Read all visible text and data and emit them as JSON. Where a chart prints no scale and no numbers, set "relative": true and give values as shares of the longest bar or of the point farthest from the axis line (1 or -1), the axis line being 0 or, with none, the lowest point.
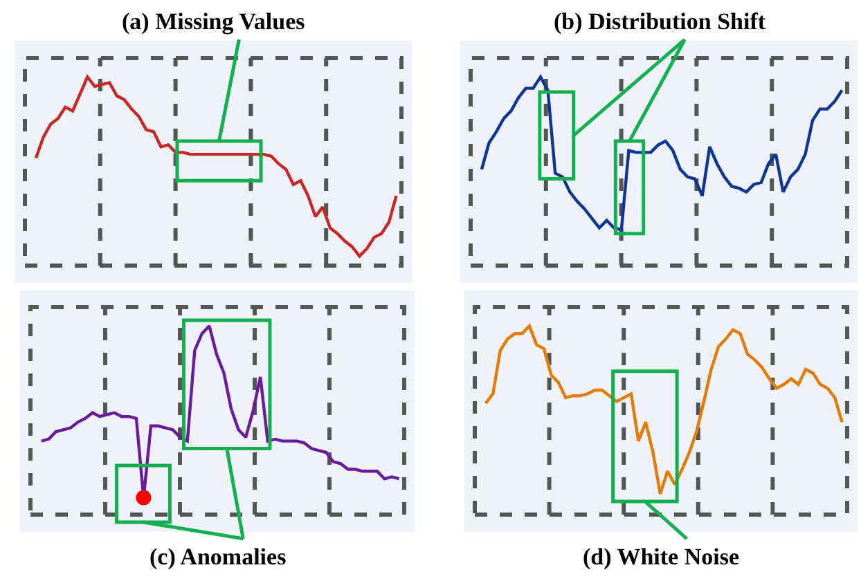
{
  "chart_data": [
    {
      "type": "line",
      "title": "(a) Missing Values",
      "relative": true,
      "marker": "none",
      "categories": [
        null,
        null,
        null,
        null,
        null,
        null,
        null,
        null,
        null,
        null,
        null,
        null,
        null,
        null,
        null,
        null,
        null,
        null,
        null,
        null,
        null,
        null,
        null,
        null,
        null,
        null,
        null,
        null,
        null,
        null,
        null,
        null,
        null,
        null,
        null,
        null,
        null,
        null,
        null,
        null,
        null,
        null,
        null,
        null,
        null,
        null,
        null,
        null,
        null,
        null
      ],
      "series": [
        {
          "color": "#c62828",
          "values": [
            0.57,
            0.68,
            0.75,
            0.78,
            0.84,
            0.82,
            0.91,
            1.0,
            0.95,
            0.96,
            0.97,
            0.9,
            0.88,
            0.83,
            0.79,
            0.72,
            0.71,
            0.63,
            0.64,
            0.6,
            0.6,
            0.59,
            0.59,
            0.59,
            0.59,
            0.59,
            0.59,
            0.59,
            0.59,
            0.59,
            0.59,
            0.59,
            0.58,
            0.54,
            0.51,
            0.43,
            0.45,
            0.37,
            0.26,
            0.31,
            0.2,
            0.17,
            0.13,
            0.1,
            0.05,
            0.09,
            0.15,
            0.17,
            0.23,
            0.37
          ]
        }
      ]
    },
    {
      "type": "line",
      "title": "(b) Distribution Shift",
      "relative": true,
      "marker": "none",
      "categories": [
        null,
        null,
        null,
        null,
        null,
        null,
        null,
        null,
        null,
        null,
        null,
        null,
        null,
        null,
        null,
        null,
        null,
        null,
        null,
        null,
        null,
        null,
        null,
        null,
        null,
        null,
        null,
        null,
        null,
        null,
        null,
        null,
        null,
        null,
        null,
        null,
        null,
        null,
        null,
        null,
        null,
        null,
        null,
        null,
        null,
        null,
        null,
        null,
        null,
        null
      ],
      "series": [
        {
          "color": "#0d3594",
          "values": [
            0.51,
            0.65,
            0.71,
            0.78,
            0.82,
            0.89,
            0.94,
            0.94,
            1,
            0.93,
            0.49,
            0.47,
            0.39,
            0.34,
            0.3,
            0.25,
            0.2,
            0.24,
            0.2,
            0.19,
            0.61,
            0.6,
            0.6,
            0.6,
            0.64,
            0.66,
            0.61,
            0.51,
            0.47,
            0.46,
            0.37,
            0.63,
            0.54,
            0.47,
            0.42,
            0.41,
            0.39,
            0.43,
            0.44,
            0.54,
            0.59,
            0.39,
            0.47,
            0.51,
            0.59,
            0.77,
            0.83,
            0.83,
            0.87,
            0.93
          ]
        }
      ]
    },
    {
      "type": "line",
      "title": "(c) Anomalies",
      "relative": true,
      "marker": "none",
      "categories": [
        null,
        null,
        null,
        null,
        null,
        null,
        null,
        null,
        null,
        null,
        null,
        null,
        null,
        null,
        null,
        null,
        null,
        null,
        null,
        null,
        null,
        null,
        null,
        null,
        null,
        null,
        null,
        null,
        null,
        null,
        null,
        null,
        null,
        null,
        null,
        null,
        null,
        null,
        null,
        null,
        null,
        null,
        null,
        null,
        null,
        null,
        null,
        null,
        null,
        null
      ],
      "series": [
        {
          "color": "#6a1b9a",
          "values": [
            0.39,
            0.4,
            0.44,
            0.45,
            0.46,
            0.49,
            0.51,
            0.54,
            0.52,
            0.53,
            0.54,
            0.52,
            0.52,
            0.51,
            0.09,
            0.47,
            0.47,
            0.46,
            0.45,
            0.41,
            0.39,
            0.87,
            0.96,
            1,
            0.85,
            0.75,
            0.56,
            0.45,
            0.41,
            0.55,
            0.73,
            0.39,
            0.4,
            0.39,
            0.39,
            0.39,
            0.38,
            0.35,
            0.34,
            0.33,
            0.28,
            0.27,
            0.24,
            0.24,
            0.23,
            0.23,
            0.23,
            0.19,
            0.2,
            0.19
          ]
        }
      ]
    },
    {
      "type": "line",
      "title": "(d) White Noise",
      "relative": true,
      "marker": "none",
      "categories": [
        null,
        null,
        null,
        null,
        null,
        null,
        null,
        null,
        null,
        null,
        null,
        null,
        null,
        null,
        null,
        null,
        null,
        null,
        null,
        null,
        null,
        null,
        null,
        null,
        null,
        null,
        null,
        null,
        null,
        null,
        null,
        null,
        null,
        null,
        null,
        null,
        null,
        null,
        null,
        null,
        null,
        null,
        null,
        null,
        null,
        null,
        null,
        null,
        null,
        null
      ],
      "series": [
        {
          "color": "#e37b06",
          "values": [
            0.59,
            0.64,
            0.87,
            0.93,
            0.96,
            0.96,
            1,
            0.9,
            0.88,
            0.74,
            0.7,
            0.62,
            0.63,
            0.63,
            0.64,
            0.66,
            0.66,
            0.63,
            0.6,
            0.62,
            0.64,
            0.39,
            0.49,
            0.33,
            0.11,
            0.23,
            0.16,
            0.24,
            0.33,
            0.44,
            0.6,
            0.77,
            0.89,
            0.93,
            0.98,
            0.96,
            0.85,
            0.82,
            0.78,
            0.72,
            0.67,
            0.69,
            0.72,
            0.69,
            0.77,
            0.75,
            0.69,
            0.67,
            0.62,
            0.49
          ]
        }
      ]
    }
  ]
}
